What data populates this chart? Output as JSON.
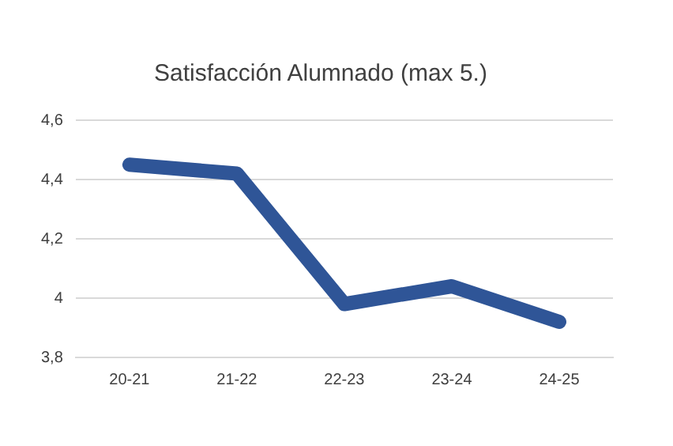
{
  "chart_data": {
    "type": "line",
    "title": "Satisfacción Alumnado (max 5.)",
    "categories": [
      "20-21",
      "21-22",
      "22-23",
      "23-24",
      "24-25"
    ],
    "series": [
      {
        "color": "#2f5597",
        "values": [
          4.45,
          4.42,
          3.98,
          4.04,
          3.92
        ]
      }
    ],
    "ylim": [
      3.8,
      4.6
    ],
    "yticks": [
      {
        "value": 3.8,
        "label": "3,8"
      },
      {
        "value": 4,
        "label": "4"
      },
      {
        "value": 4.2,
        "label": "4,2"
      },
      {
        "value": 4.4,
        "label": "4,4"
      },
      {
        "value": 4.6,
        "label": "4,6"
      }
    ],
    "grid": "y",
    "marker": "none",
    "line_style": "solid",
    "legend": false
  }
}
